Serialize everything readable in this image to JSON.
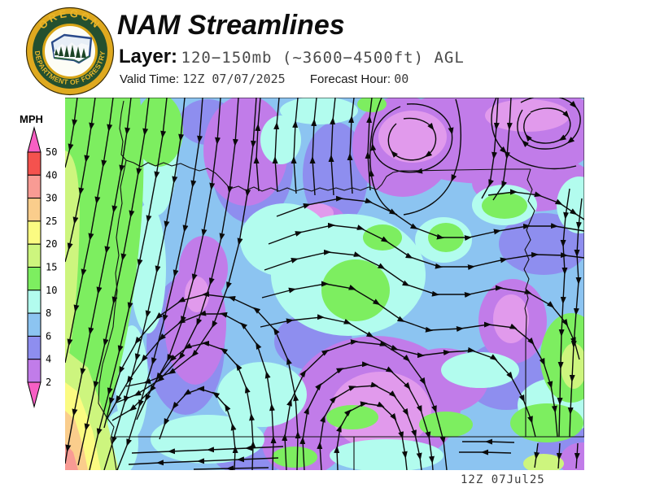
{
  "header": {
    "title": "NAM Streamlines",
    "layer_label": "Layer:",
    "layer_value": "120−150mb (~3600−4500ft) AGL",
    "valid_time_label": "Valid Time:",
    "valid_time_value": "12Z 07/07/2025",
    "forecast_hour_label": "Forecast Hour:",
    "forecast_hour_value": "00"
  },
  "logo": {
    "top_text": "OREGON",
    "bottom_text": "DEPARTMENT OF FORESTRY"
  },
  "legend": {
    "units": "MPH",
    "labels": [
      "50",
      "40",
      "30",
      "25",
      "20",
      "15",
      "10",
      "8",
      "6",
      "4",
      "2"
    ],
    "colors": [
      "#f4524e",
      "#f89b94",
      "#facd8c",
      "#fbfb82",
      "#cdf57e",
      "#7dee60",
      "#b2fcee",
      "#8cc4f1",
      "#8e8eef",
      "#c17ce9"
    ],
    "arrow_color": "#f75fc4"
  },
  "map": {
    "region": "Oregon",
    "field": "wind speed (MPH) with streamlines",
    "speed_scale_mph": [
      2,
      4,
      6,
      8,
      10,
      15,
      20,
      25,
      30,
      40,
      50
    ],
    "palette": {
      "2-4": "#c17ce9",
      "4-6": "#8e8eef",
      "6-8": "#8cc4f1",
      "8-10": "#b2fcee",
      "10-15": "#7dee60",
      "15-20": "#cdf57e",
      "20-25": "#fbfb82",
      "25-30": "#facd8c",
      "30-40": "#f89b94",
      "40-50": "#f4524e"
    }
  },
  "footer": {
    "timestamp": "12Z 07Jul25"
  }
}
